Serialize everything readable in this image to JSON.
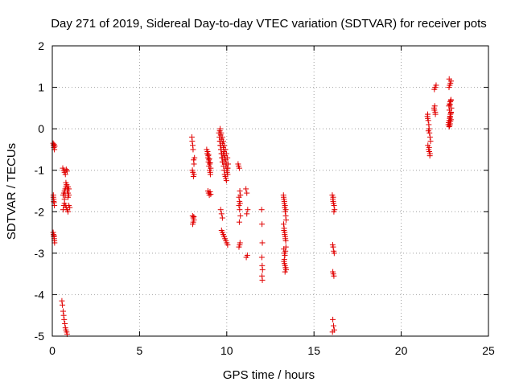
{
  "chart_data": {
    "type": "scatter",
    "title": "Day 271 of 2019, Sidereal Day-to-day VTEC variation (SDTVAR) for receiver pots",
    "xlabel": "GPS time / hours",
    "ylabel": "SDTVAR / TECUs",
    "xlim": [
      0,
      25
    ],
    "ylim": [
      -5,
      2
    ],
    "xticks": [
      0,
      5,
      10,
      15,
      20,
      25
    ],
    "yticks": [
      -5,
      -4,
      -3,
      -2,
      -1,
      0,
      1,
      2
    ],
    "xtick_labels": [
      "0",
      "5",
      "10",
      "15",
      "20",
      "25"
    ],
    "ytick_labels": [
      "-5",
      "-4",
      "-3",
      "-2",
      "-1",
      "0",
      "1",
      "2"
    ],
    "grid": true,
    "marker": "+",
    "colors": {
      "series": "#e00000",
      "grid": "#a0a0a0",
      "frame": "#000000"
    },
    "series": [
      {
        "name": "SDTVAR",
        "x": [
          0.05,
          0.07,
          0.09,
          0.1,
          0.12,
          0.14,
          0.06,
          0.08,
          0.1,
          0.12,
          0.05,
          0.07,
          0.09,
          0.11,
          0.13,
          0.06,
          0.08,
          0.1,
          0.12,
          0.55,
          0.58,
          0.62,
          0.65,
          0.68,
          0.72,
          0.75,
          0.78,
          0.82,
          0.85,
          0.6,
          0.65,
          0.7,
          0.75,
          0.8,
          0.85,
          0.9,
          0.95,
          0.62,
          0.66,
          0.7,
          0.74,
          0.78,
          0.82,
          0.86,
          0.9,
          0.7,
          0.75,
          0.8,
          0.85,
          0.9,
          0.95,
          1.0,
          0.62,
          0.66,
          0.7,
          0.74,
          0.78,
          0.82,
          0.86,
          0.9,
          0.95,
          8.0,
          8.02,
          8.05,
          8.07,
          8.1,
          8.12,
          8.15,
          8.03,
          8.06,
          8.09,
          8.12,
          8.04,
          8.08,
          8.12,
          8.05,
          8.08,
          8.11,
          8.85,
          8.88,
          8.92,
          8.95,
          8.98,
          9.02,
          9.05,
          9.08,
          8.9,
          8.94,
          8.98,
          9.02,
          9.06,
          8.92,
          8.96,
          9.0,
          9.04,
          9.08,
          8.95,
          9.0,
          9.05,
          9.55,
          9.58,
          9.62,
          9.65,
          9.68,
          9.72,
          9.75,
          9.78,
          9.82,
          9.85,
          9.88,
          9.92,
          9.95,
          9.98,
          10.02,
          10.05,
          10.08,
          9.6,
          9.65,
          9.7,
          9.75,
          9.8,
          9.85,
          9.9,
          9.95,
          10.0,
          10.05,
          9.62,
          9.68,
          9.74,
          9.8,
          9.86,
          9.92,
          9.98,
          10.04,
          9.7,
          9.75,
          9.8,
          9.85,
          9.9,
          9.95,
          10.0,
          10.05,
          9.65,
          9.7,
          9.75,
          9.8,
          9.85,
          9.9,
          9.95,
          10.0,
          10.05,
          9.6,
          9.63,
          9.66,
          9.69,
          9.72,
          9.75,
          10.65,
          10.68,
          10.72,
          10.75,
          10.78,
          10.7,
          10.73,
          10.76,
          10.7,
          10.74,
          10.78,
          10.72,
          10.76,
          10.7,
          10.74,
          11.1,
          11.15,
          11.2,
          11.15,
          11.18,
          11.12,
          12.0,
          12.02,
          12.04,
          12.01,
          12.03,
          12.05,
          12.02,
          12.04,
          13.25,
          13.28,
          13.3,
          13.32,
          13.35,
          13.38,
          13.4,
          13.26,
          13.29,
          13.32,
          13.35,
          13.38,
          13.27,
          13.3,
          13.33,
          13.36,
          13.39,
          13.28,
          13.31,
          13.34,
          13.37,
          13.4,
          13.26,
          13.3,
          13.34,
          13.38,
          13.28,
          13.32,
          13.36,
          13.3,
          13.34,
          13.38,
          16.05,
          16.08,
          16.1,
          16.12,
          16.15,
          16.18,
          16.07,
          16.1,
          16.13,
          16.16,
          16.08,
          16.11,
          16.14,
          16.08,
          16.12,
          16.16,
          16.06,
          16.1,
          16.14,
          21.5,
          21.52,
          21.55,
          21.58,
          21.6,
          21.62,
          21.65,
          21.68,
          21.53,
          21.57,
          21.61,
          21.65,
          21.52,
          21.56,
          21.6,
          21.64,
          21.9,
          21.95,
          21.88,
          21.92,
          21.96,
          21.9,
          21.95,
          22.0,
          22.7,
          22.72,
          22.75,
          22.78,
          22.8,
          22.82,
          22.85,
          22.88,
          22.73,
          22.77,
          22.81,
          22.85,
          22.74,
          22.78,
          22.82,
          22.86,
          22.75,
          22.8,
          22.85,
          22.76,
          22.8,
          22.84,
          22.75,
          22.8,
          22.85,
          22.78,
          22.82
        ],
        "y": [
          -0.35,
          -0.4,
          -0.45,
          -0.38,
          -0.5,
          -0.42,
          -1.6,
          -1.7,
          -1.78,
          -1.85,
          -2.5,
          -2.55,
          -2.6,
          -2.65,
          -2.75,
          -1.65,
          -1.75,
          -2.58,
          -2.7,
          -4.15,
          -4.25,
          -4.4,
          -4.5,
          -4.6,
          -4.7,
          -4.8,
          -4.85,
          -4.9,
          -4.95,
          -0.95,
          -1.0,
          -1.05,
          -1.1,
          -0.98,
          -1.02,
          -1.4,
          -1.45,
          -1.6,
          -1.55,
          -1.5,
          -1.45,
          -1.4,
          -1.35,
          -1.5,
          -1.65,
          -1.8,
          -1.85,
          -1.9,
          -1.95,
          -2.0,
          -1.85,
          -1.9,
          -1.95,
          -1.85,
          -1.7,
          -1.6,
          -1.3,
          -1.35,
          -1.45,
          -1.55,
          -1.6,
          -0.2,
          -0.3,
          -0.4,
          -0.5,
          -0.75,
          -0.85,
          -0.7,
          -1.0,
          -1.05,
          -1.15,
          -1.1,
          -2.1,
          -2.15,
          -2.2,
          -2.3,
          -2.25,
          -2.12,
          -0.5,
          -0.6,
          -0.7,
          -0.8,
          -0.9,
          -1.0,
          -1.05,
          -0.95,
          -0.55,
          -0.65,
          -0.75,
          -0.85,
          -1.1,
          -1.5,
          -1.55,
          -1.6,
          -1.52,
          -1.58,
          -0.62,
          -0.72,
          -0.82,
          -0.1,
          -0.2,
          -0.3,
          -0.4,
          -0.5,
          -0.6,
          -0.7,
          -0.8,
          -0.9,
          -1.0,
          -1.1,
          -1.15,
          -1.2,
          -1.25,
          -1.05,
          -0.95,
          -0.85,
          -0.05,
          -0.15,
          -0.25,
          -0.35,
          -0.45,
          -0.55,
          -0.65,
          -0.75,
          -0.85,
          -0.95,
          0.0,
          -0.1,
          -0.2,
          -0.3,
          -0.4,
          -0.5,
          -0.6,
          -0.7,
          -2.45,
          -2.5,
          -2.55,
          -2.6,
          -2.65,
          -2.7,
          -2.75,
          -2.8,
          -1.95,
          -2.05,
          -2.15,
          -0.6,
          -0.7,
          -0.8,
          -0.9,
          -1.0,
          -1.1,
          -0.3,
          -0.4,
          -0.5,
          -0.6,
          -0.7,
          -0.8,
          -0.85,
          -0.9,
          -0.95,
          -1.5,
          -1.6,
          -1.65,
          -1.75,
          -1.8,
          -1.85,
          -1.95,
          -2.1,
          -2.25,
          -2.75,
          -2.85,
          -2.8,
          -1.45,
          -1.55,
          -1.95,
          -2.05,
          -3.05,
          -3.1,
          -1.95,
          -2.3,
          -2.75,
          -3.1,
          -3.3,
          -3.4,
          -3.55,
          -3.65,
          -1.6,
          -1.7,
          -1.8,
          -1.9,
          -2.0,
          -2.1,
          -2.2,
          -2.3,
          -2.4,
          -2.5,
          -2.6,
          -2.7,
          -2.9,
          -3.0,
          -3.05,
          -2.95,
          -2.85,
          -3.2,
          -3.25,
          -3.3,
          -3.35,
          -3.4,
          -1.65,
          -1.75,
          -1.85,
          -1.95,
          -2.45,
          -2.55,
          -2.65,
          -3.15,
          -3.45,
          -3.35,
          -1.6,
          -1.7,
          -1.75,
          -1.8,
          -1.85,
          -1.95,
          -2.8,
          -2.85,
          -2.95,
          -3.0,
          -3.45,
          -3.5,
          -3.55,
          -4.6,
          -4.75,
          -4.85,
          -4.9,
          -1.65,
          -2.0,
          0.3,
          0.25,
          0.2,
          0.1,
          0.0,
          -0.1,
          -0.2,
          -0.3,
          -0.4,
          -0.5,
          -0.55,
          -0.6,
          0.35,
          -0.05,
          -0.45,
          -0.65,
          0.45,
          0.4,
          0.5,
          0.55,
          0.35,
          0.95,
          1.0,
          1.05,
          0.1,
          0.15,
          0.2,
          0.25,
          0.3,
          0.35,
          0.4,
          0.5,
          0.55,
          0.6,
          0.65,
          0.7,
          1.0,
          1.05,
          1.1,
          1.15,
          0.05,
          0.12,
          0.22,
          0.45,
          0.58,
          0.68,
          1.2,
          0.28,
          0.38,
          0.08,
          0.18
        ]
      }
    ]
  }
}
